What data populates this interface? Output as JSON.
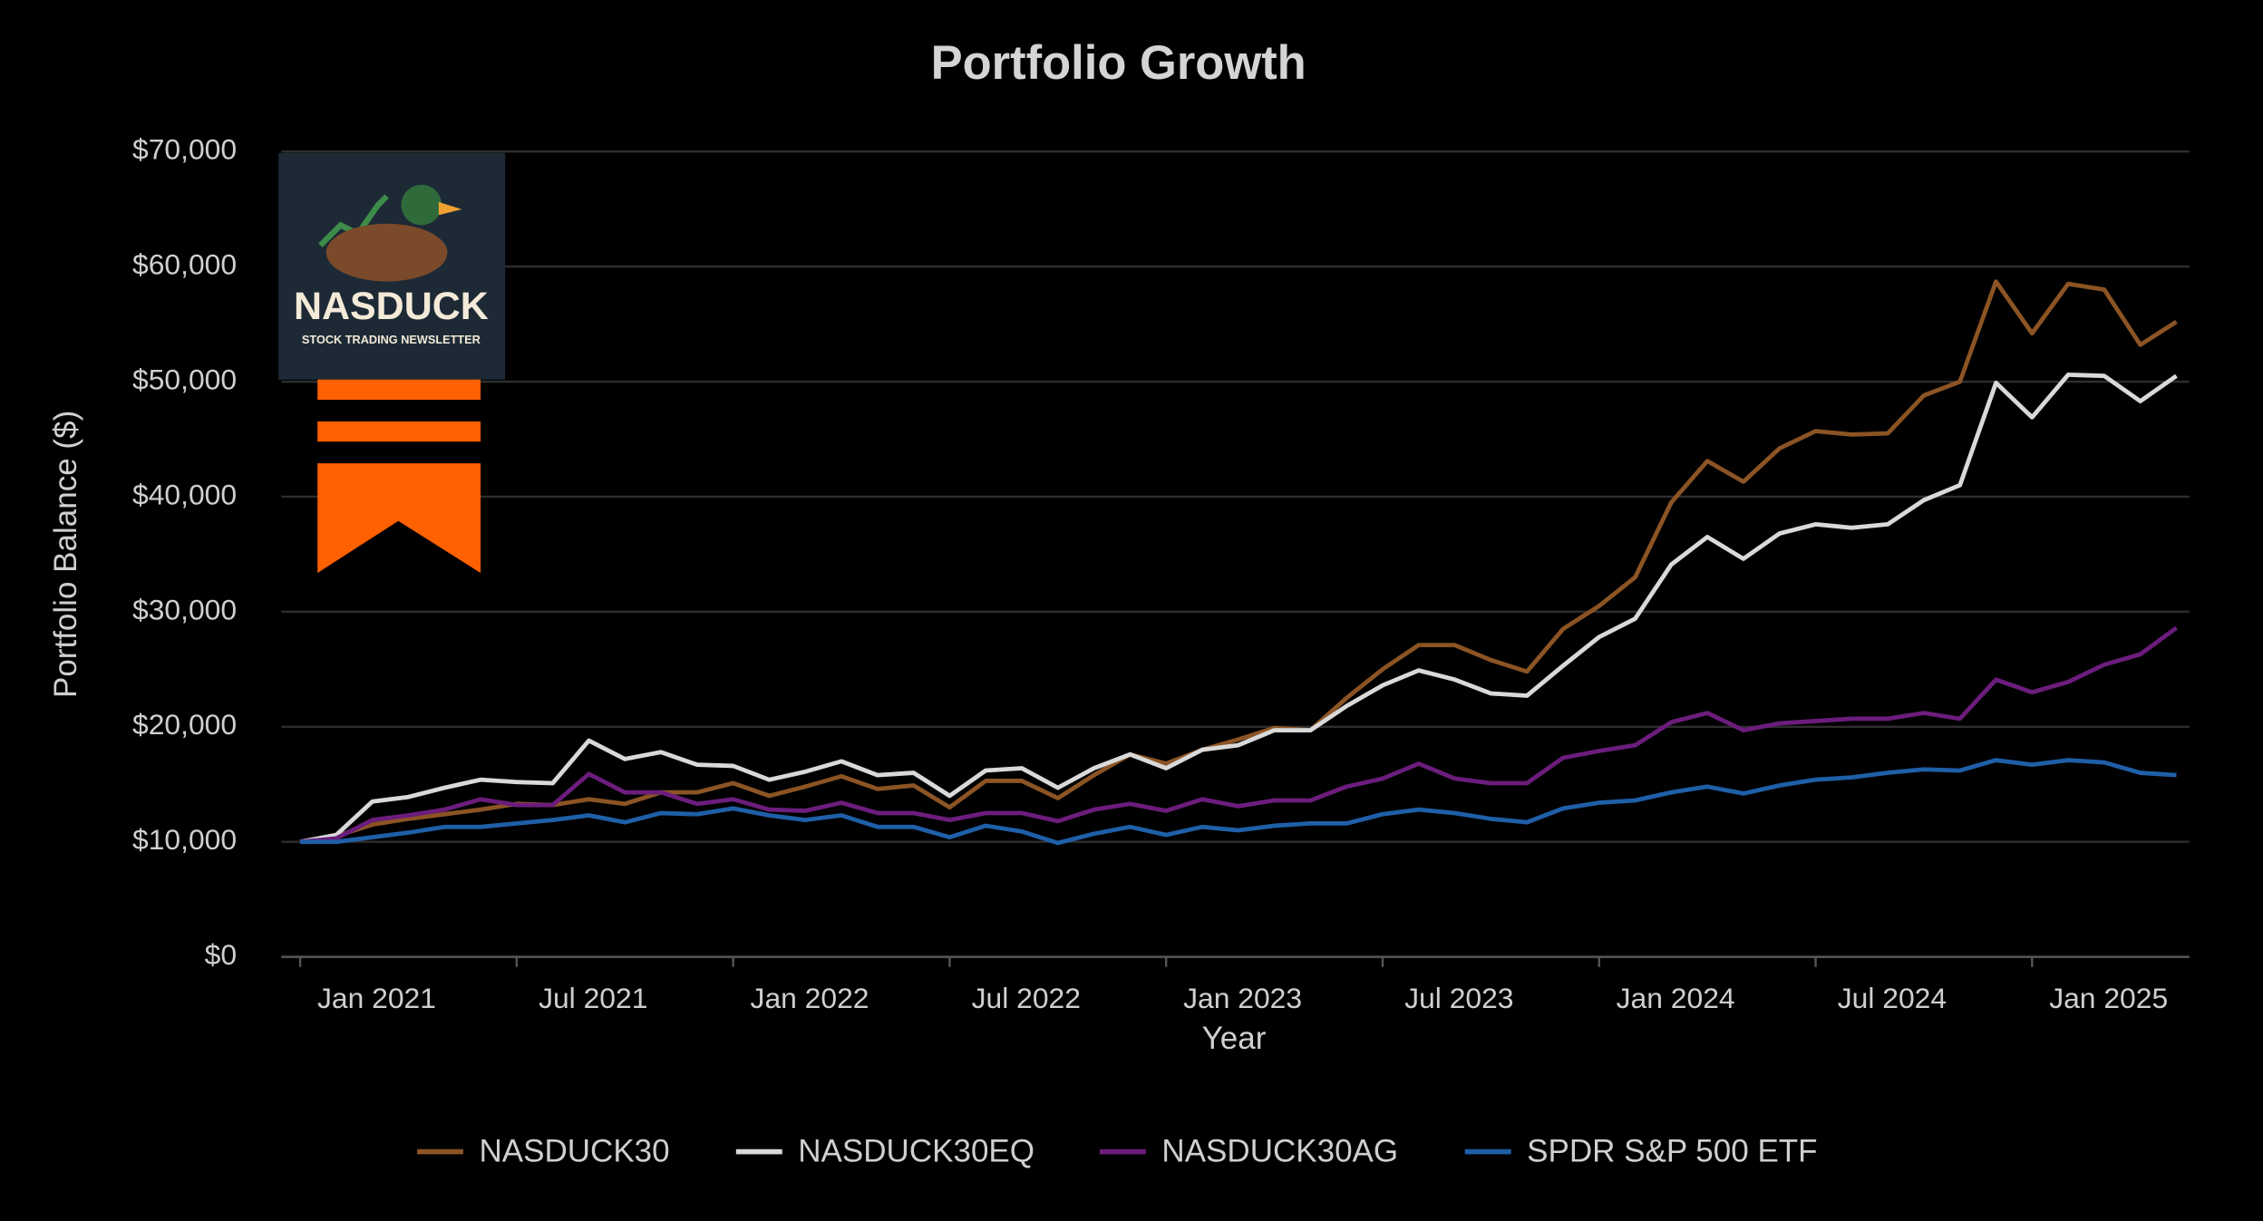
{
  "chart_data": {
    "type": "line",
    "title": "Portfolio Growth",
    "xlabel": "Year",
    "ylabel": "Portfolio Balance ($)",
    "logo": {
      "title": "NASDUCK",
      "subtitle": "STOCK TRADING NEWSLETTER"
    },
    "x": [
      "2021-01",
      "2021-02",
      "2021-03",
      "2021-04",
      "2021-05",
      "2021-06",
      "2021-07",
      "2021-08",
      "2021-09",
      "2021-10",
      "2021-11",
      "2021-12",
      "2022-01",
      "2022-02",
      "2022-03",
      "2022-04",
      "2022-05",
      "2022-06",
      "2022-07",
      "2022-08",
      "2022-09",
      "2022-10",
      "2022-11",
      "2022-12",
      "2023-01",
      "2023-02",
      "2023-03",
      "2023-04",
      "2023-05",
      "2023-06",
      "2023-07",
      "2023-08",
      "2023-09",
      "2023-10",
      "2023-11",
      "2023-12",
      "2024-01",
      "2024-02",
      "2024-03",
      "2024-04",
      "2024-05",
      "2024-06",
      "2024-07",
      "2024-08",
      "2024-09",
      "2024-10",
      "2024-11",
      "2024-12",
      "2025-01",
      "2025-02",
      "2025-03",
      "2025-04",
      "2025-05"
    ],
    "xticks": [
      {
        "value": "2021-01",
        "label": "Jan 2021"
      },
      {
        "value": "2021-07",
        "label": "Jul 2021"
      },
      {
        "value": "2022-01",
        "label": "Jan 2022"
      },
      {
        "value": "2022-07",
        "label": "Jul 2022"
      },
      {
        "value": "2023-01",
        "label": "Jan 2023"
      },
      {
        "value": "2023-07",
        "label": "Jul 2023"
      },
      {
        "value": "2024-01",
        "label": "Jan 2024"
      },
      {
        "value": "2024-07",
        "label": "Jul 2024"
      },
      {
        "value": "2025-01",
        "label": "Jan 2025"
      }
    ],
    "ylim": [
      0,
      70000
    ],
    "yticks": [
      {
        "value": 0,
        "label": "$0"
      },
      {
        "value": 10000,
        "label": "$10,000"
      },
      {
        "value": 20000,
        "label": "$20,000"
      },
      {
        "value": 30000,
        "label": "$30,000"
      },
      {
        "value": 40000,
        "label": "$40,000"
      },
      {
        "value": 50000,
        "label": "$50,000"
      },
      {
        "value": 60000,
        "label": "$60,000"
      },
      {
        "value": 70000,
        "label": "$70,000"
      }
    ],
    "grid": true,
    "legend": "bottom",
    "series": [
      {
        "name": "NASDUCK30",
        "color": "#8c5424",
        "values": [
          10000,
          10500,
          11500,
          12000,
          12400,
          12800,
          13300,
          13200,
          13700,
          13300,
          14300,
          14300,
          15100,
          14000,
          14800,
          15700,
          14600,
          14900,
          13000,
          15300,
          15300,
          13800,
          15800,
          17600,
          16800,
          18000,
          18900,
          19900,
          19700,
          22500,
          25000,
          27100,
          27100,
          25800,
          24800,
          28500,
          30500,
          33000,
          39500,
          43100,
          41300,
          44200,
          45700,
          45400,
          45500,
          48800,
          50000,
          58700,
          54200,
          58500,
          58000,
          53200,
          55200
        ]
      },
      {
        "name": "NASDUCK30EQ",
        "color": "#d9d9d9",
        "values": [
          10000,
          10600,
          13500,
          13900,
          14700,
          15400,
          15200,
          15100,
          18800,
          17200,
          17800,
          16700,
          16600,
          15400,
          16100,
          17000,
          15800,
          16000,
          14000,
          16200,
          16400,
          14700,
          16400,
          17600,
          16400,
          18000,
          18400,
          19700,
          19700,
          21800,
          23600,
          24900,
          24100,
          22900,
          22700,
          25300,
          27800,
          29400,
          34100,
          36500,
          34600,
          36800,
          37600,
          37300,
          37600,
          39700,
          41000,
          49900,
          46900,
          50600,
          50500,
          48300,
          50500
        ]
      },
      {
        "name": "NASDUCK30AG",
        "color": "#6c1d7c",
        "values": [
          10000,
          10300,
          11900,
          12300,
          12800,
          13700,
          13200,
          13200,
          15900,
          14300,
          14300,
          13300,
          13700,
          12800,
          12700,
          13400,
          12500,
          12500,
          11900,
          12500,
          12500,
          11800,
          12800,
          13300,
          12700,
          13700,
          13100,
          13600,
          13600,
          14800,
          15500,
          16800,
          15500,
          15100,
          15100,
          17300,
          17900,
          18400,
          20400,
          21200,
          19700,
          20300,
          20500,
          20700,
          20700,
          21200,
          20700,
          24100,
          23000,
          23900,
          25400,
          26300,
          28600
        ]
      },
      {
        "name": "SPDR S&P 500 ETF",
        "color": "#1f5fa8",
        "values": [
          10000,
          10000,
          10400,
          10800,
          11300,
          11300,
          11600,
          11900,
          12300,
          11700,
          12500,
          12400,
          12900,
          12300,
          11900,
          12300,
          11300,
          11300,
          10400,
          11400,
          10900,
          9900,
          10700,
          11300,
          10600,
          11300,
          11000,
          11400,
          11600,
          11600,
          12400,
          12800,
          12500,
          12000,
          11700,
          12900,
          13400,
          13600,
          14300,
          14800,
          14200,
          14900,
          15400,
          15600,
          16000,
          16300,
          16200,
          17100,
          16700,
          17100,
          16900,
          16000,
          15800
        ]
      }
    ]
  }
}
